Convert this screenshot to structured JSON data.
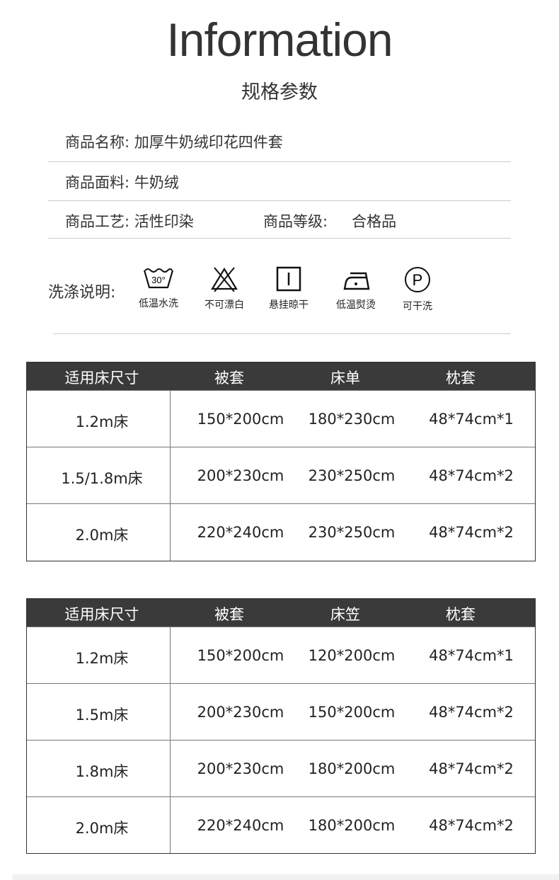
{
  "header": {
    "title": "Information",
    "subtitle": "规格参数"
  },
  "info": [
    {
      "label": "商品名称",
      "value": "加厚牛奶绒印花四件套"
    },
    {
      "label": "商品面料",
      "value": "牛奶绒"
    },
    {
      "label": "商品工艺",
      "value": "活性印染",
      "label2": "商品等级",
      "value2": "合格品"
    }
  ],
  "wash": {
    "label": "洗涤说明:",
    "items": [
      {
        "icon": "wash-30-icon",
        "text": "30°",
        "label": "低温水洗"
      },
      {
        "icon": "no-bleach-icon",
        "label": "不可漂白"
      },
      {
        "icon": "hang-dry-icon",
        "label": "悬挂晾干"
      },
      {
        "icon": "low-iron-icon",
        "label": "低温熨烫"
      },
      {
        "icon": "dry-clean-icon",
        "text": "P",
        "label": "可干洗"
      }
    ]
  },
  "table1": {
    "headers": [
      "适用床尺寸",
      "被套",
      "床单",
      "枕套"
    ],
    "rows": [
      [
        "1.2m床",
        "150*200cm",
        "180*230cm",
        "48*74cm*1"
      ],
      [
        "1.5/1.8m床",
        "200*230cm",
        "230*250cm",
        "48*74cm*2"
      ],
      [
        "2.0m床",
        "220*240cm",
        "230*250cm",
        "48*74cm*2"
      ]
    ]
  },
  "table2": {
    "headers": [
      "适用床尺寸",
      "被套",
      "床笠",
      "枕套"
    ],
    "rows": [
      [
        "1.2m床",
        "150*200cm",
        "120*200cm",
        "48*74cm*1"
      ],
      [
        "1.5m床",
        "200*230cm",
        "150*200cm",
        "48*74cm*2"
      ],
      [
        "1.8m床",
        "200*230cm",
        "180*200cm",
        "48*74cm*2"
      ],
      [
        "2.0m床",
        "220*240cm",
        "180*200cm",
        "48*74cm*2"
      ]
    ]
  },
  "colors": {
    "header_bg": "#3a3a3a",
    "text": "#222222"
  }
}
